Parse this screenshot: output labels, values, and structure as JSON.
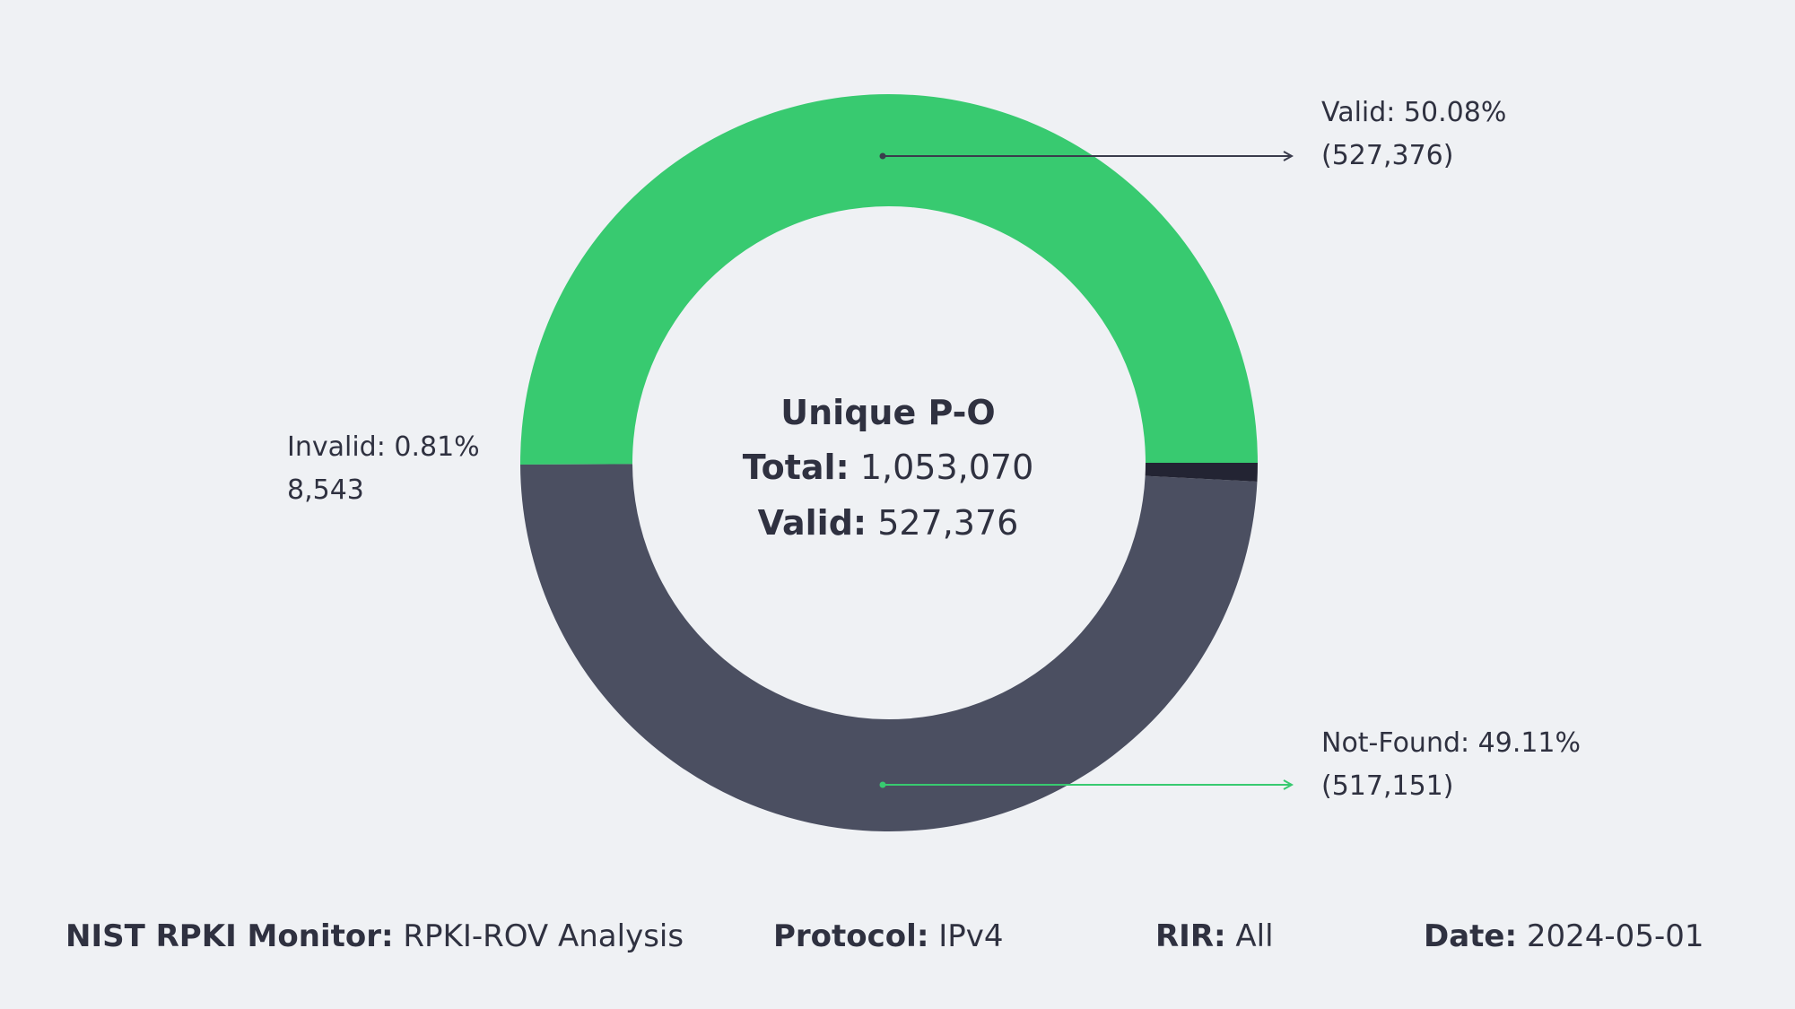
{
  "chart_data": {
    "type": "pie",
    "variant": "donut",
    "slices": [
      {
        "name": "Valid",
        "value": 527376,
        "percent": 50.08,
        "color": "#38ca70"
      },
      {
        "name": "Not-Found",
        "value": 517151,
        "percent": 49.11,
        "color": "#4b4f61"
      },
      {
        "name": "Invalid",
        "value": 8543,
        "percent": 0.81,
        "color": "#232433"
      }
    ],
    "center": {
      "title": "Unique P-O",
      "total_label": "Total:",
      "total_value": "1,053,070",
      "valid_label": "Valid:",
      "valid_value": "527,376"
    },
    "callouts": {
      "valid": {
        "line1": "Valid: 50.08%",
        "line2": "(527,376)"
      },
      "not_found": {
        "line1": "Not-Found: 49.11%",
        "line2": "(517,151)"
      },
      "invalid": {
        "line1": "Invalid: 0.81%",
        "line2": "8,543"
      }
    },
    "arrow_colors": {
      "valid": "#3a3c4c",
      "not_found": "#38ca70"
    }
  },
  "footer": {
    "monitor_label": "NIST RPKI Monitor:",
    "monitor_value": "RPKI-ROV Analysis",
    "protocol_label": "Protocol:",
    "protocol_value": "IPv4",
    "rir_label": "RIR:",
    "rir_value": "All",
    "date_label": "Date:",
    "date_value": "2024-05-01"
  }
}
